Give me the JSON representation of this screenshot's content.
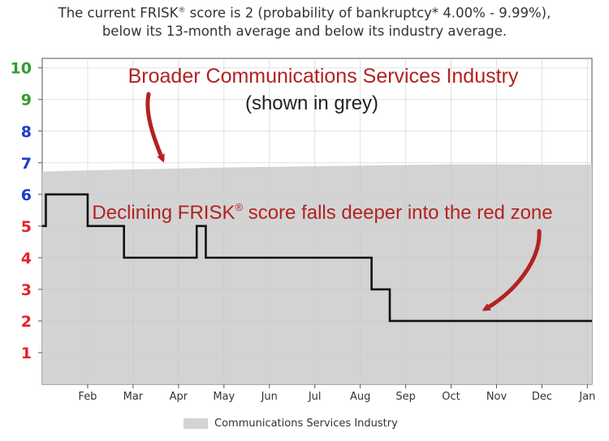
{
  "header": {
    "line1_prefix": "The current FRISK",
    "line1_sup": "®",
    "line1_suffix": " score is 2 (probability of bankruptcy* 4.00% - 9.99%),",
    "line2": "below its 13-month average and below its industry average."
  },
  "annotations": {
    "industry_title": "Broader Communications Services Industry",
    "industry_subtitle": "(shown in grey)",
    "decline_prefix": "Declining FRISK",
    "decline_sup": "®",
    "decline_suffix": " score falls deeper into the red zone"
  },
  "legend": {
    "label": "Communications Services Industry",
    "color": "#d3d3d3"
  },
  "colors": {
    "score_line": "#111111",
    "industry_fill": "#d3d3d3",
    "annotation": "#b22222",
    "tick_green": "#2e9e2e",
    "tick_blue": "#1a3cc8",
    "tick_red": "#e8202a"
  },
  "chart_data": {
    "type": "line",
    "x_tick_labels": [
      "Feb",
      "Mar",
      "Apr",
      "May",
      "Jun",
      "Jul",
      "Aug",
      "Sep",
      "Oct",
      "Nov",
      "Dec",
      "Jan"
    ],
    "y_ticks": [
      1,
      2,
      3,
      4,
      5,
      6,
      7,
      8,
      9,
      10
    ],
    "y_tick_colors": [
      "red",
      "red",
      "red",
      "red",
      "red",
      "blue",
      "blue",
      "blue",
      "green",
      "green"
    ],
    "ylim": [
      0,
      10.3
    ],
    "x_unit": "months since start of January",
    "xlim": [
      0,
      12.1
    ],
    "grid": true,
    "legend_position": "bottom",
    "series": [
      {
        "name": "Communications Services Industry",
        "kind": "area",
        "x": [
          0,
          1,
          2,
          3,
          4,
          5,
          6,
          7,
          8,
          9,
          10,
          11,
          12.1
        ],
        "values": [
          6.72,
          6.76,
          6.79,
          6.82,
          6.85,
          6.87,
          6.89,
          6.91,
          6.93,
          6.95,
          6.95,
          6.94,
          6.94
        ]
      },
      {
        "kind": "step",
        "x": [
          0,
          0.08,
          1.0,
          1.8,
          3.4,
          3.6,
          3.8,
          7.25,
          7.65,
          12.1
        ],
        "values": [
          5,
          6,
          5,
          4,
          5,
          4,
          4,
          3,
          2,
          2
        ]
      }
    ]
  }
}
